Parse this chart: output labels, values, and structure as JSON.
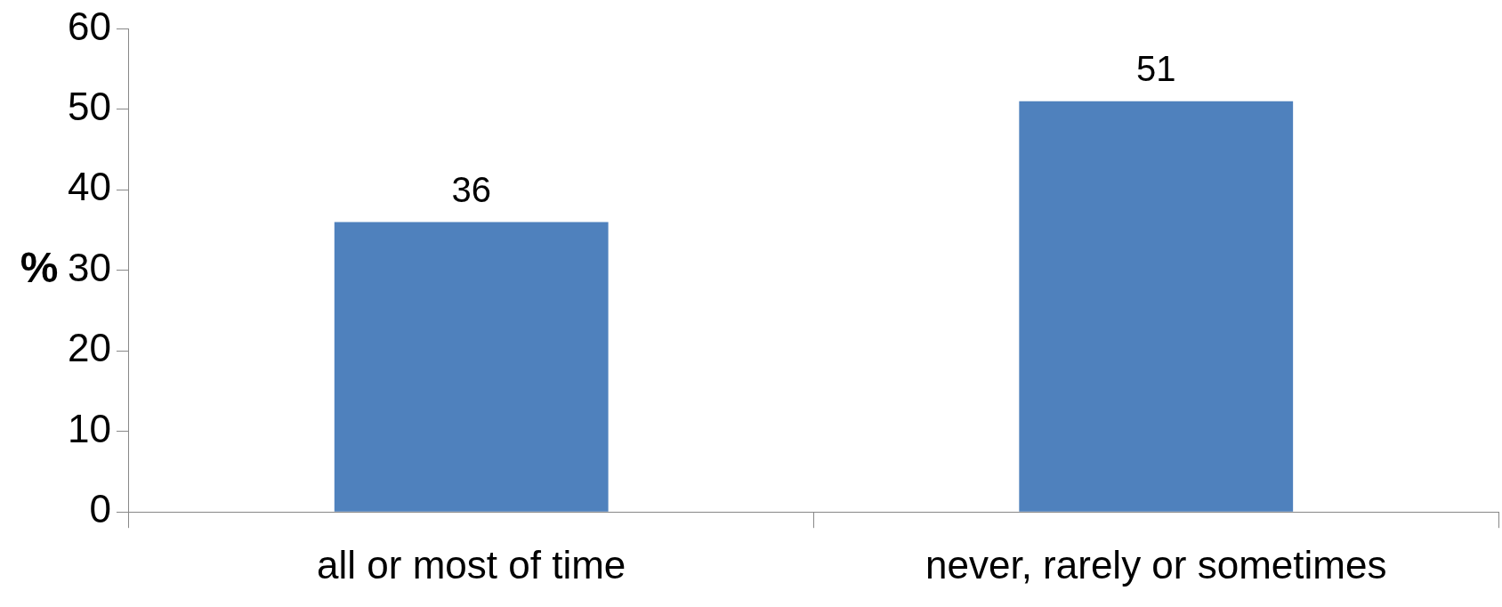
{
  "chart_data": {
    "type": "bar",
    "ylabel": "%",
    "categories": [
      "all or most of time",
      "never, rarely or sometimes"
    ],
    "values": [
      36,
      51
    ],
    "color": "#4f81bd",
    "ylim": [
      0,
      60
    ],
    "yticks": [
      0,
      10,
      20,
      30,
      40,
      50,
      60
    ],
    "grid": false,
    "legend": false,
    "data_labels": true
  }
}
